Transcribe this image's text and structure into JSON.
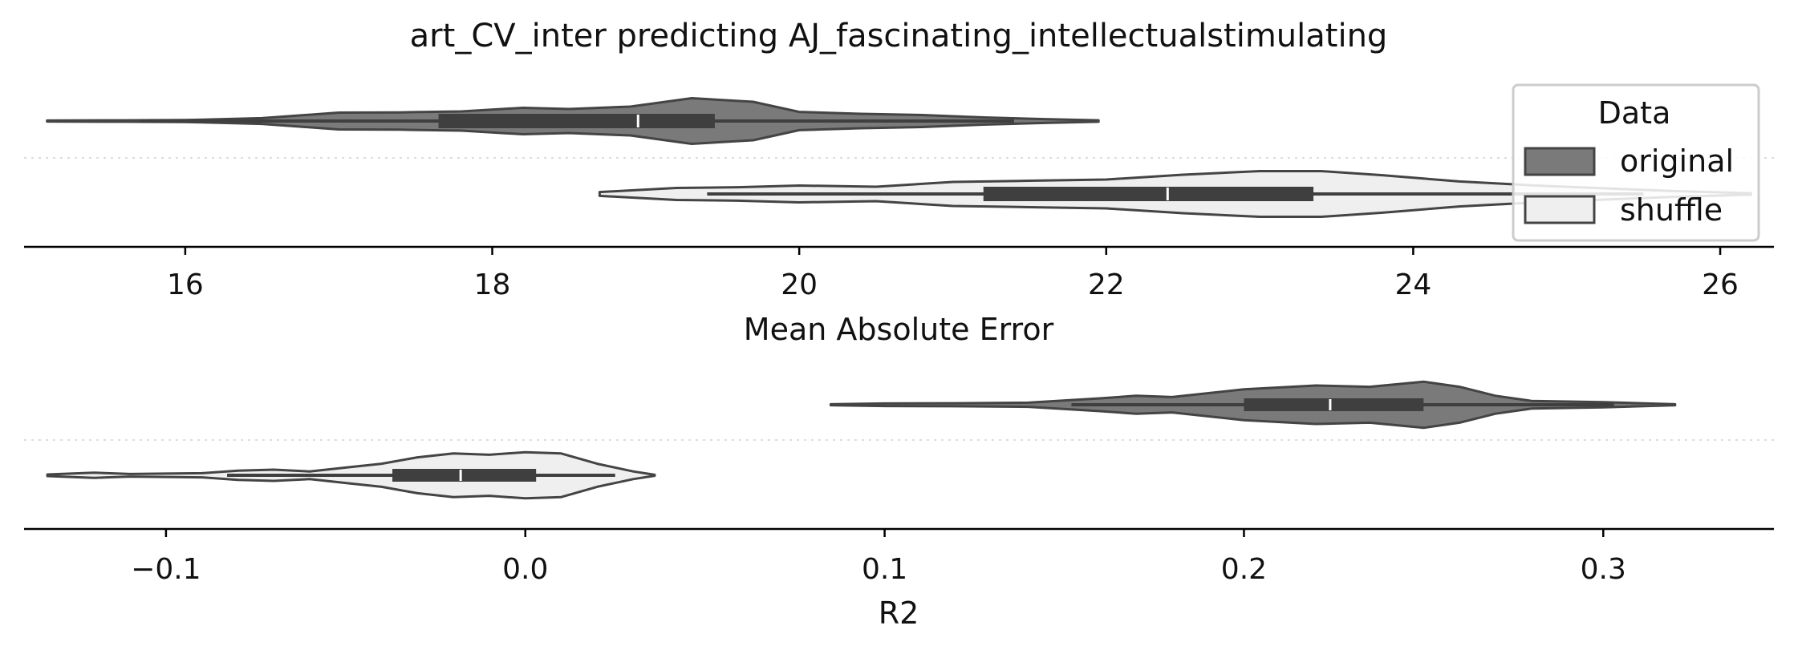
{
  "title": "art_CV_inter predicting AJ_fascinating_intellectualstimulating",
  "legend": {
    "title": "Data",
    "entries": [
      {
        "label": "original",
        "color": "#7a7a7a"
      },
      {
        "label": "shuffle",
        "color": "#efefef"
      }
    ],
    "placement": "top-right"
  },
  "colors": {
    "edge": "#444444",
    "box": "#3f3f3f",
    "median": "#ffffff",
    "grid": "#dddddd"
  },
  "chart_data": [
    {
      "type": "violin",
      "xlabel": "Mean Absolute Error",
      "xlim": [
        14.95,
        26.35
      ],
      "ticks": [
        16,
        18,
        20,
        22,
        24,
        26
      ],
      "grid": "dotted separator between groups",
      "series": [
        {
          "name": "original",
          "range": [
            15.1,
            21.95
          ],
          "whiskers": [
            15.7,
            21.4
          ],
          "q1": 17.65,
          "median": 18.95,
          "q3": 19.45,
          "density": [
            [
              15.1,
              0.02
            ],
            [
              15.6,
              0.03
            ],
            [
              16.0,
              0.04
            ],
            [
              16.5,
              0.12
            ],
            [
              17.0,
              0.35
            ],
            [
              17.4,
              0.36
            ],
            [
              17.8,
              0.4
            ],
            [
              18.2,
              0.55
            ],
            [
              18.5,
              0.5
            ],
            [
              18.9,
              0.6
            ],
            [
              19.3,
              0.95
            ],
            [
              19.7,
              0.8
            ],
            [
              20.0,
              0.38
            ],
            [
              20.4,
              0.3
            ],
            [
              20.8,
              0.25
            ],
            [
              21.2,
              0.15
            ],
            [
              21.6,
              0.08
            ],
            [
              21.95,
              0.03
            ]
          ]
        },
        {
          "name": "shuffle",
          "range": [
            18.7,
            26.2
          ],
          "whiskers": [
            19.4,
            25.5
          ],
          "q1": 21.2,
          "median": 22.4,
          "q3": 23.35,
          "density": [
            [
              18.7,
              0.08
            ],
            [
              19.2,
              0.25
            ],
            [
              19.6,
              0.28
            ],
            [
              20.0,
              0.35
            ],
            [
              20.5,
              0.3
            ],
            [
              21.0,
              0.5
            ],
            [
              21.5,
              0.55
            ],
            [
              22.0,
              0.6
            ],
            [
              22.5,
              0.8
            ],
            [
              23.0,
              0.95
            ],
            [
              23.4,
              0.95
            ],
            [
              23.8,
              0.78
            ],
            [
              24.3,
              0.52
            ],
            [
              24.8,
              0.35
            ],
            [
              25.3,
              0.22
            ],
            [
              25.7,
              0.12
            ],
            [
              26.2,
              0.03
            ]
          ]
        }
      ]
    },
    {
      "type": "violin",
      "xlabel": "R2",
      "xlim": [
        -0.1395,
        0.3475
      ],
      "ticks": [
        -0.1,
        0.0,
        0.1,
        0.2,
        0.3
      ],
      "tick_labels": [
        "−0.1",
        "0.0",
        "0.1",
        "0.2",
        "0.3"
      ],
      "grid": "dotted separator between groups",
      "series": [
        {
          "name": "original",
          "range": [
            0.085,
            0.32
          ],
          "whiskers": [
            0.152,
            0.303
          ],
          "q1": 0.2,
          "median": 0.224,
          "q3": 0.25,
          "density": [
            [
              0.085,
              0.02
            ],
            [
              0.1,
              0.05
            ],
            [
              0.12,
              0.06
            ],
            [
              0.14,
              0.08
            ],
            [
              0.16,
              0.25
            ],
            [
              0.17,
              0.35
            ],
            [
              0.18,
              0.3
            ],
            [
              0.2,
              0.6
            ],
            [
              0.22,
              0.75
            ],
            [
              0.235,
              0.7
            ],
            [
              0.25,
              0.9
            ],
            [
              0.26,
              0.7
            ],
            [
              0.27,
              0.35
            ],
            [
              0.28,
              0.15
            ],
            [
              0.3,
              0.1
            ],
            [
              0.32,
              0.02
            ]
          ]
        },
        {
          "name": "shuffle",
          "range": [
            -0.133,
            0.036
          ],
          "whiskers": [
            -0.083,
            0.025
          ],
          "q1": -0.037,
          "median": -0.018,
          "q3": 0.003,
          "density": [
            [
              -0.133,
              0.03
            ],
            [
              -0.12,
              0.1
            ],
            [
              -0.11,
              0.05
            ],
            [
              -0.09,
              0.08
            ],
            [
              -0.08,
              0.18
            ],
            [
              -0.07,
              0.22
            ],
            [
              -0.06,
              0.15
            ],
            [
              -0.05,
              0.3
            ],
            [
              -0.04,
              0.45
            ],
            [
              -0.03,
              0.7
            ],
            [
              -0.02,
              0.85
            ],
            [
              -0.01,
              0.8
            ],
            [
              0.0,
              0.9
            ],
            [
              0.01,
              0.85
            ],
            [
              0.02,
              0.45
            ],
            [
              0.03,
              0.15
            ],
            [
              0.036,
              0.02
            ]
          ]
        }
      ]
    }
  ]
}
